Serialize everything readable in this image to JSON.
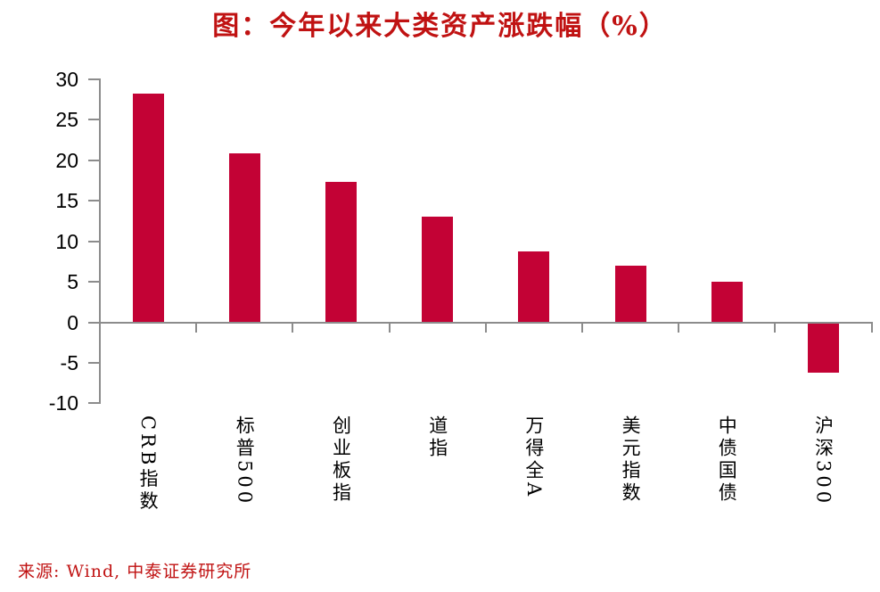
{
  "title": "图：今年以来大类资产涨跌幅（%）",
  "source": "来源: Wind, 中泰证券研究所",
  "colors": {
    "title_red": "#c01212",
    "source_red": "#c01212",
    "bar_red": "#c30235",
    "axis_gray": "#8c8c8c",
    "label_black": "#000000"
  },
  "chart_data": {
    "type": "bar",
    "title": "图：今年以来大类资产涨跌幅（%）",
    "categories": [
      "CRB指数",
      "标普500",
      "创业板指",
      "道指",
      "万得全A",
      "美元指数",
      "中债国债",
      "沪深300"
    ],
    "values": [
      28.2,
      20.9,
      17.3,
      13.0,
      8.8,
      7.0,
      5.0,
      -6.0
    ],
    "xlabel": "",
    "ylabel": "",
    "ylim": [
      -10,
      30
    ],
    "yticks": [
      30,
      25,
      20,
      15,
      10,
      5,
      0,
      -5,
      -10
    ],
    "grid": false,
    "legend": false,
    "bar_color": "#c30235",
    "axis_color": "#8c8c8c",
    "source_note": "来源: Wind, 中泰证券研究所"
  }
}
